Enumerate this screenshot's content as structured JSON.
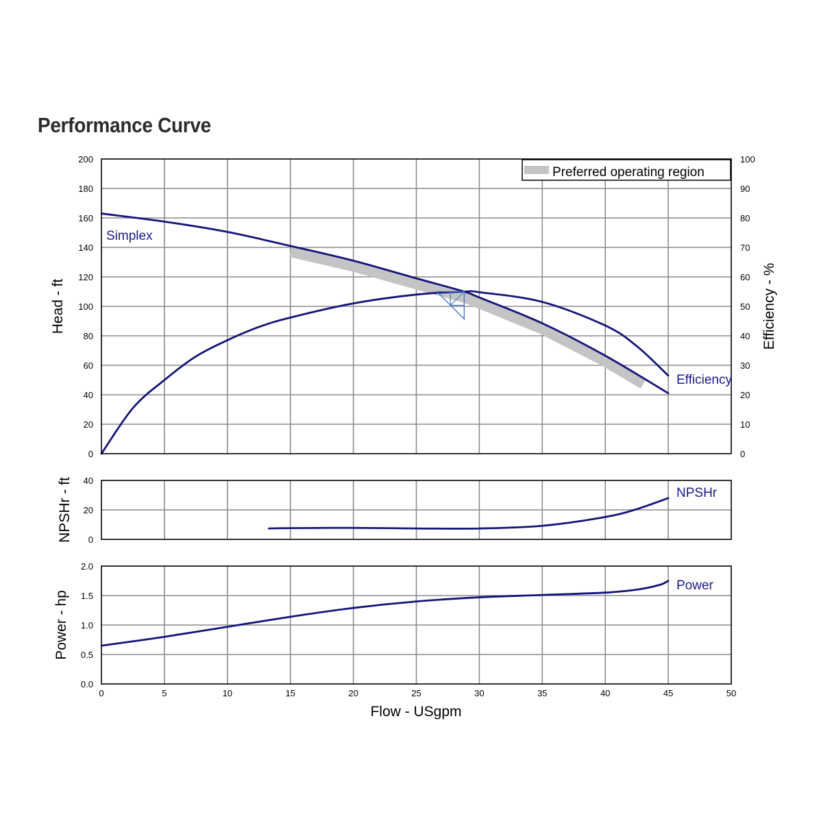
{
  "title": "Performance Curve",
  "colors": {
    "curve": "#14147a",
    "label": "#1a1a8c",
    "grid": "#8c8c8c",
    "band": "#c4c4c4",
    "bep": "#4a78c8"
  },
  "chart_data": [
    {
      "type": "line",
      "panel": "head",
      "xlabel": "",
      "ylabel": "Head - ft",
      "ylabel_right": "Efficiency - %",
      "xlim": [
        0,
        50
      ],
      "ylim": [
        0,
        200
      ],
      "ylim_right": [
        0,
        100
      ],
      "x_ticks": [
        0,
        5,
        10,
        15,
        20,
        25,
        30,
        35,
        40,
        45,
        50
      ],
      "y_ticks": [
        "0",
        "20",
        "40",
        "60",
        "80",
        "100",
        "120",
        "140",
        "160",
        "180",
        "200"
      ],
      "y_ticks_right": [
        "0",
        "10",
        "20",
        "30",
        "40",
        "50",
        "60",
        "70",
        "80",
        "90",
        "100"
      ],
      "grid": true,
      "legend": {
        "position": "top-right",
        "entries": [
          "Preferred operating region"
        ]
      },
      "preferred_region": {
        "x": [
          15,
          43.3
        ],
        "head_offset": 4
      },
      "bep_marker": {
        "x": 28.8,
        "head": 110
      },
      "series": [
        {
          "name": "Simplex",
          "axis": "left",
          "x": [
            0,
            5,
            10,
            15,
            20,
            25,
            28.8,
            30,
            35,
            40,
            45
          ],
          "y": [
            163,
            157.5,
            150.5,
            141,
            131,
            119,
            110,
            106,
            88.5,
            66.5,
            41
          ]
        },
        {
          "name": "Efficiency",
          "axis": "right",
          "x": [
            0,
            2.5,
            5,
            7.5,
            10,
            12.5,
            15,
            20,
            25,
            28.8,
            30,
            35,
            40,
            42.5,
            45
          ],
          "y": [
            0,
            15.5,
            25,
            33,
            38.5,
            43,
            46.2,
            51,
            54,
            55,
            54.8,
            51.5,
            43.5,
            36.5,
            26.5
          ]
        }
      ]
    },
    {
      "type": "line",
      "panel": "npshr",
      "ylabel": "NPSHr - ft",
      "xlim": [
        0,
        50
      ],
      "ylim": [
        0,
        40
      ],
      "y_ticks": [
        "0",
        "20",
        "40"
      ],
      "grid": true,
      "series": [
        {
          "name": "NPSHr",
          "x": [
            13.3,
            15,
            20,
            25,
            30,
            35,
            40,
            42.5,
            45
          ],
          "y": [
            7.4,
            7.6,
            7.8,
            7.4,
            7.4,
            9.2,
            15.2,
            20.5,
            28
          ]
        }
      ]
    },
    {
      "type": "line",
      "panel": "power",
      "ylabel": "Power - hp",
      "xlabel": "Flow - USgpm",
      "xlim": [
        0,
        50
      ],
      "ylim": [
        0,
        2.0
      ],
      "y_ticks": [
        "0.0",
        "0.5",
        "1.0",
        "1.5",
        "2.0"
      ],
      "x_ticks": [
        "0",
        "5",
        "10",
        "15",
        "20",
        "25",
        "30",
        "35",
        "40",
        "45",
        "50"
      ],
      "grid": true,
      "series": [
        {
          "name": "Power",
          "x": [
            0,
            5,
            10,
            15,
            20,
            25,
            30,
            35,
            40,
            42.5,
            44.3,
            45
          ],
          "y": [
            0.65,
            0.8,
            0.97,
            1.14,
            1.29,
            1.4,
            1.47,
            1.51,
            1.55,
            1.6,
            1.68,
            1.75
          ]
        }
      ]
    }
  ]
}
